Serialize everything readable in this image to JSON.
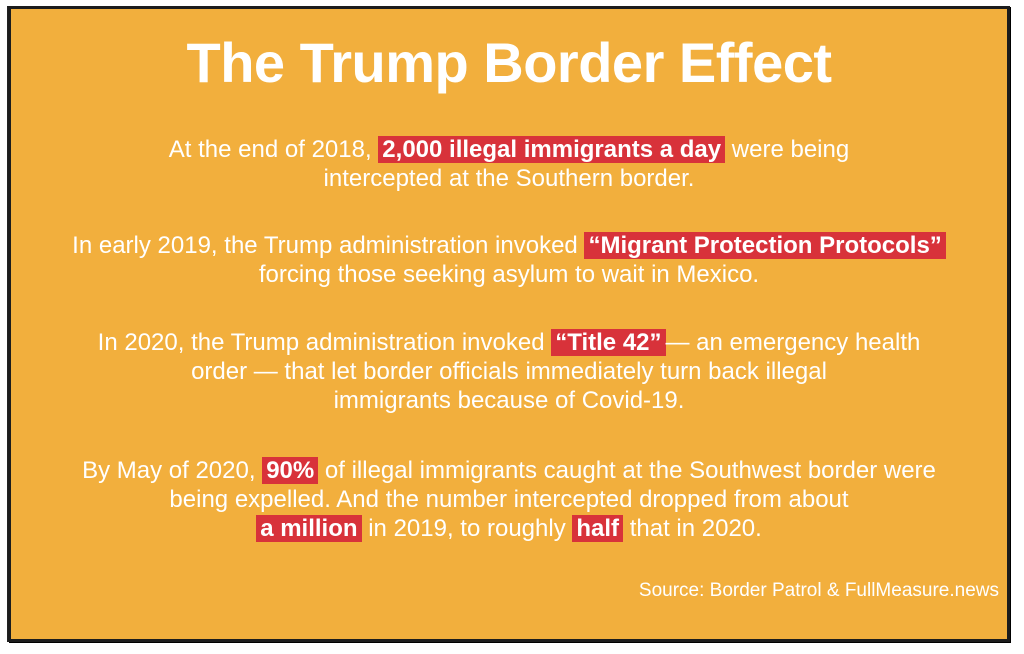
{
  "title": "The Trump Border Effect",
  "paragraphs": {
    "p1": {
      "a": "At the end of 2018, ",
      "hl": "2,000 illegal immigrants a day",
      "b": " were being",
      "c": "intercepted at the Southern border."
    },
    "p2": {
      "a": "In early 2019, the Trump administration invoked ",
      "hl": "“Migrant Protection Protocols”",
      "b": "forcing those seeking asylum to wait in Mexico."
    },
    "p3": {
      "a": "In 2020, the Trump administration invoked ",
      "hl": "“Title 42”",
      "b": "— an emergency health",
      "c": "order — that let border officials immediately turn back illegal",
      "d": "immigrants because of Covid-19."
    },
    "p4": {
      "a": "By May of 2020, ",
      "hl1": "90%",
      "b": " of illegal immigrants caught at the Southwest border were",
      "c": "being expelled. And the number intercepted dropped from about",
      "hl2": "a million",
      "d": " in 2019, to roughly ",
      "hl3": "half",
      "e": " that in 2020."
    }
  },
  "source": "Source: Border Patrol & FullMeasure.news",
  "colors": {
    "background": "#f2af3d",
    "highlight": "#d8323a",
    "text": "#ffffff"
  }
}
